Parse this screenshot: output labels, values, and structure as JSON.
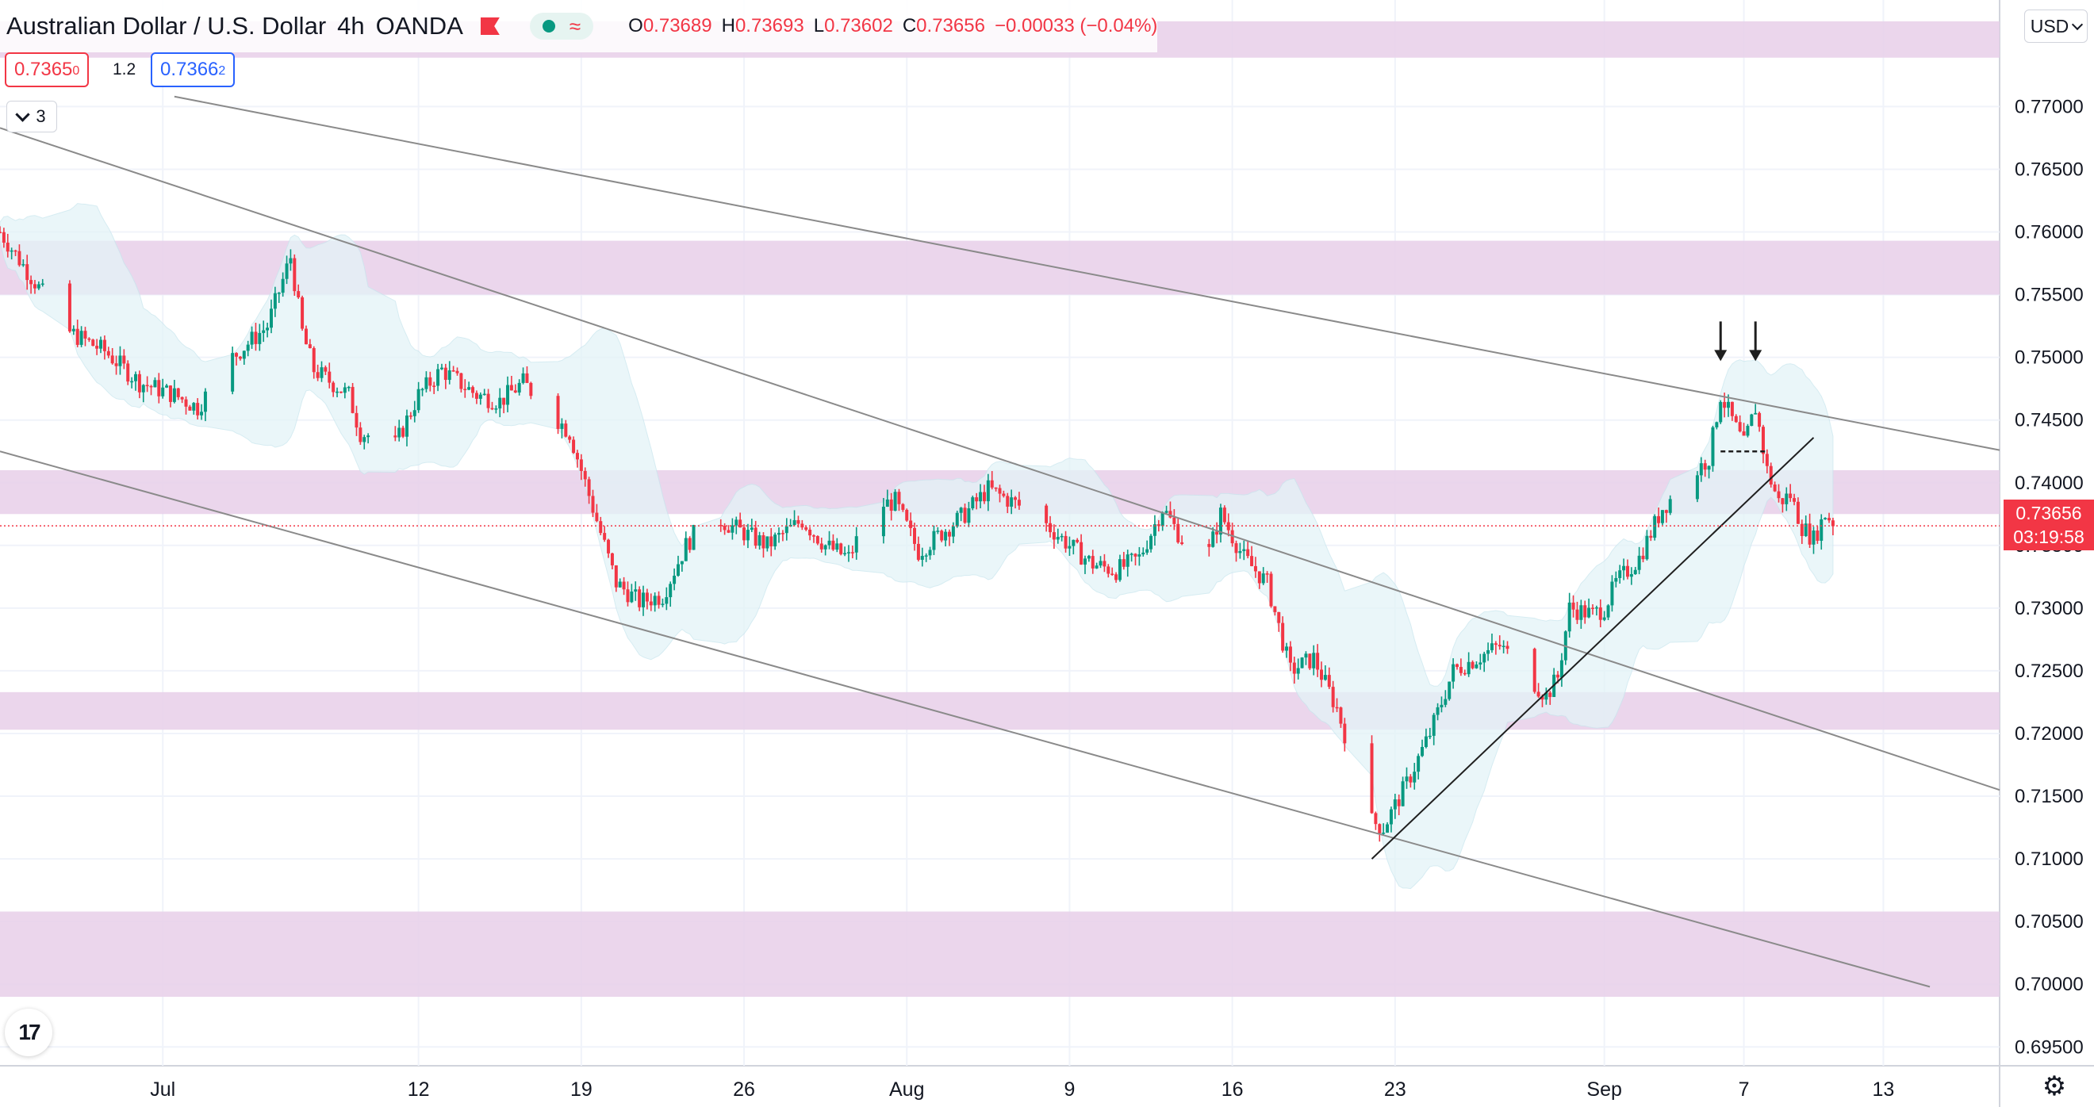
{
  "header": {
    "symbol": "Australian Dollar / U.S. Dollar",
    "interval": "4h",
    "exchange": "OANDA",
    "ohlc": {
      "o_label": "O",
      "o": "0.73689",
      "h_label": "H",
      "h": "0.73693",
      "l_label": "L",
      "l": "0.73602",
      "c_label": "C",
      "c": "0.73656",
      "change": "−0.00033 (−0.04%)"
    }
  },
  "quote": {
    "bid_main": "0.7365",
    "bid_sup": "0",
    "spread": "1.2",
    "ask_main": "0.7366",
    "ask_sup": "2"
  },
  "indicator_toggle": {
    "count": "3"
  },
  "currency": {
    "label": "USD"
  },
  "last_price": {
    "value": "0.73656",
    "countdown": "03:19:58"
  },
  "logo_text": "17",
  "icons": {
    "settings": "gear-icon",
    "logo": "tradingview-logo-icon",
    "flag": "flag-icon",
    "dot": "status-dot-icon",
    "wave": "wave-icon",
    "chevron": "chevron-down-icon"
  },
  "colors": {
    "up": "#089981",
    "down": "#f23645",
    "zone": "#e7cfe9",
    "band": "#e3f4f7",
    "line": "#8a8a8a"
  },
  "chart_data": {
    "type": "candlestick",
    "y_axis": {
      "ylim": [
        0.6935,
        0.7785
      ],
      "side": "right",
      "ticks": [
        0.77,
        0.765,
        0.76,
        0.755,
        0.75,
        0.745,
        0.74,
        0.735,
        0.73,
        0.725,
        0.72,
        0.715,
        0.71,
        0.705,
        0.7,
        0.695
      ],
      "tick_labels": [
        "0.77000",
        "0.76500",
        "0.76000",
        "0.75500",
        "0.75000",
        "0.74500",
        "0.74000",
        "0.73500",
        "0.73000",
        "0.72500",
        "0.72000",
        "0.71500",
        "0.71000",
        "0.70500",
        "0.70000",
        "0.69500"
      ]
    },
    "x_axis": {
      "xlim": [
        "2021-06-24",
        "2021-09-18"
      ],
      "labels": [
        {
          "date": "2021-07-01",
          "label": "Jul"
        },
        {
          "date": "2021-07-12",
          "label": "12"
        },
        {
          "date": "2021-07-19",
          "label": "19"
        },
        {
          "date": "2021-07-26",
          "label": "26"
        },
        {
          "date": "2021-08-02",
          "label": "Aug"
        },
        {
          "date": "2021-08-09",
          "label": "9"
        },
        {
          "date": "2021-08-16",
          "label": "16"
        },
        {
          "date": "2021-08-23",
          "label": "23"
        },
        {
          "date": "2021-09-01",
          "label": "Sep"
        },
        {
          "date": "2021-09-07",
          "label": "7"
        },
        {
          "date": "2021-09-13",
          "label": "13"
        }
      ]
    },
    "grid": true,
    "last_close": 0.73656,
    "series": [
      {
        "closes_path": [
          [
            "2021-06-24T00:00",
            0.76
          ],
          [
            "2021-06-25T12:00",
            0.756
          ],
          [
            "2021-06-27T00:00",
            0.752
          ],
          [
            "2021-06-28T12:00",
            0.7505
          ],
          [
            "2021-06-30T00:00",
            0.748
          ],
          [
            "2021-07-01T12:00",
            0.747
          ],
          [
            "2021-07-02T12:00",
            0.746
          ],
          [
            "2021-07-04T00:00",
            0.75
          ],
          [
            "2021-07-05T12:00",
            0.7525
          ],
          [
            "2021-07-06T12:00",
            0.758
          ],
          [
            "2021-07-07T00:00",
            0.752
          ],
          [
            "2021-07-07T12:00",
            0.749
          ],
          [
            "2021-07-09T00:00",
            0.747
          ],
          [
            "2021-07-09T12:00",
            0.744
          ],
          [
            "2021-07-11T00:00",
            0.743
          ],
          [
            "2021-07-12T00:00",
            0.747
          ],
          [
            "2021-07-13T00:00",
            0.749
          ],
          [
            "2021-07-14T12:00",
            0.747
          ],
          [
            "2021-07-15T12:00",
            0.7465
          ],
          [
            "2021-07-16T12:00",
            0.748
          ],
          [
            "2021-07-17T12:00",
            0.746
          ],
          [
            "2021-07-18T12:00",
            0.744
          ],
          [
            "2021-07-19T12:00",
            0.738
          ],
          [
            "2021-07-20T12:00",
            0.732
          ],
          [
            "2021-07-21T12:00",
            0.7305
          ],
          [
            "2021-07-22T12:00",
            0.731
          ],
          [
            "2021-07-23T12:00",
            0.735
          ],
          [
            "2021-07-24T12:00",
            0.7375
          ],
          [
            "2021-07-26T00:00",
            0.736
          ],
          [
            "2021-07-27T00:00",
            0.735
          ],
          [
            "2021-07-28T12:00",
            0.737
          ],
          [
            "2021-07-29T12:00",
            0.735
          ],
          [
            "2021-07-30T12:00",
            0.734
          ],
          [
            "2021-07-31T12:00",
            0.738
          ],
          [
            "2021-08-01T12:00",
            0.7385
          ],
          [
            "2021-08-02T12:00",
            0.7345
          ],
          [
            "2021-08-03T12:00",
            0.736
          ],
          [
            "2021-08-04T12:00",
            0.7375
          ],
          [
            "2021-08-05T12:00",
            0.7395
          ],
          [
            "2021-08-06T12:00",
            0.7385
          ],
          [
            "2021-08-07T12:00",
            0.7375
          ],
          [
            "2021-08-09T00:00",
            0.735
          ],
          [
            "2021-08-10T00:00",
            0.7335
          ],
          [
            "2021-08-11T00:00",
            0.733
          ],
          [
            "2021-08-12T00:00",
            0.734
          ],
          [
            "2021-08-13T00:00",
            0.738
          ],
          [
            "2021-08-14T00:00",
            0.735
          ],
          [
            "2021-08-15T00:00",
            0.7345
          ],
          [
            "2021-08-15T12:00",
            0.7375
          ],
          [
            "2021-08-16T12:00",
            0.734
          ],
          [
            "2021-08-17T12:00",
            0.732
          ],
          [
            "2021-08-18T12:00",
            0.725
          ],
          [
            "2021-08-19T12:00",
            0.726
          ],
          [
            "2021-08-20T12:00",
            0.722
          ],
          [
            "2021-08-21T12:00",
            0.716
          ],
          [
            "2021-08-22T00:00",
            0.713
          ],
          [
            "2021-08-22T12:00",
            0.7125
          ],
          [
            "2021-08-23T12:00",
            0.716
          ],
          [
            "2021-08-24T12:00",
            0.72
          ],
          [
            "2021-08-25T12:00",
            0.725
          ],
          [
            "2021-08-26T12:00",
            0.726
          ],
          [
            "2021-08-27T12:00",
            0.727
          ],
          [
            "2021-08-28T12:00",
            0.725
          ],
          [
            "2021-08-29T12:00",
            0.723
          ],
          [
            "2021-08-30T00:00",
            0.7245
          ],
          [
            "2021-08-30T12:00",
            0.73
          ],
          [
            "2021-08-31T12:00",
            0.7295
          ],
          [
            "2021-09-01T00:00",
            0.73
          ],
          [
            "2021-09-01T12:00",
            0.732
          ],
          [
            "2021-09-02T12:00",
            0.734
          ],
          [
            "2021-09-03T12:00",
            0.738
          ],
          [
            "2021-09-04T12:00",
            0.74
          ],
          [
            "2021-09-05T12:00",
            0.742
          ],
          [
            "2021-09-06T00:00",
            0.747
          ],
          [
            "2021-09-06T12:00",
            0.745
          ],
          [
            "2021-09-07T00:00",
            0.743
          ],
          [
            "2021-09-07T12:00",
            0.746
          ],
          [
            "2021-09-08T00:00",
            0.741
          ],
          [
            "2021-09-08T12:00",
            0.7385
          ],
          [
            "2021-09-09T00:00",
            0.739
          ],
          [
            "2021-09-09T12:00",
            0.7365
          ],
          [
            "2021-09-10T00:00",
            0.7355
          ],
          [
            "2021-09-10T12:00",
            0.7375
          ],
          [
            "2021-09-11T00:00",
            0.7366
          ]
        ]
      }
    ],
    "zones": [
      [
        0.7739,
        0.7768
      ],
      [
        0.755,
        0.7593
      ],
      [
        0.7375,
        0.741
      ],
      [
        0.7203,
        0.7233
      ],
      [
        0.699,
        0.7058
      ]
    ],
    "trendlines": [
      {
        "name": "channel-top",
        "from": [
          "2021-07-01T12:00",
          0.7708
        ],
        "to": [
          "2021-09-18T00:00",
          0.7426
        ]
      },
      {
        "name": "channel-middle",
        "from": [
          "2021-06-24T00:00",
          0.7683
        ],
        "to": [
          "2021-09-18T00:00",
          0.7155
        ]
      },
      {
        "name": "channel-bottom",
        "from": [
          "2021-06-24T00:00",
          0.7425
        ],
        "to": [
          "2021-09-15T00:00",
          0.6998
        ]
      },
      {
        "name": "rising-support",
        "from": [
          "2021-08-22T00:00",
          0.71
        ],
        "to": [
          "2021-09-10T00:00",
          0.7436
        ]
      }
    ],
    "annotations": [
      {
        "type": "arrow-down",
        "at": [
          "2021-09-06T00:00",
          0.7497
        ]
      },
      {
        "type": "arrow-down",
        "at": [
          "2021-09-07T12:00",
          0.7497
        ]
      },
      {
        "type": "dashed-level",
        "from": [
          "2021-09-06T00:00",
          0.7425
        ],
        "to": [
          "2021-09-08T00:00",
          0.7425
        ]
      }
    ]
  }
}
